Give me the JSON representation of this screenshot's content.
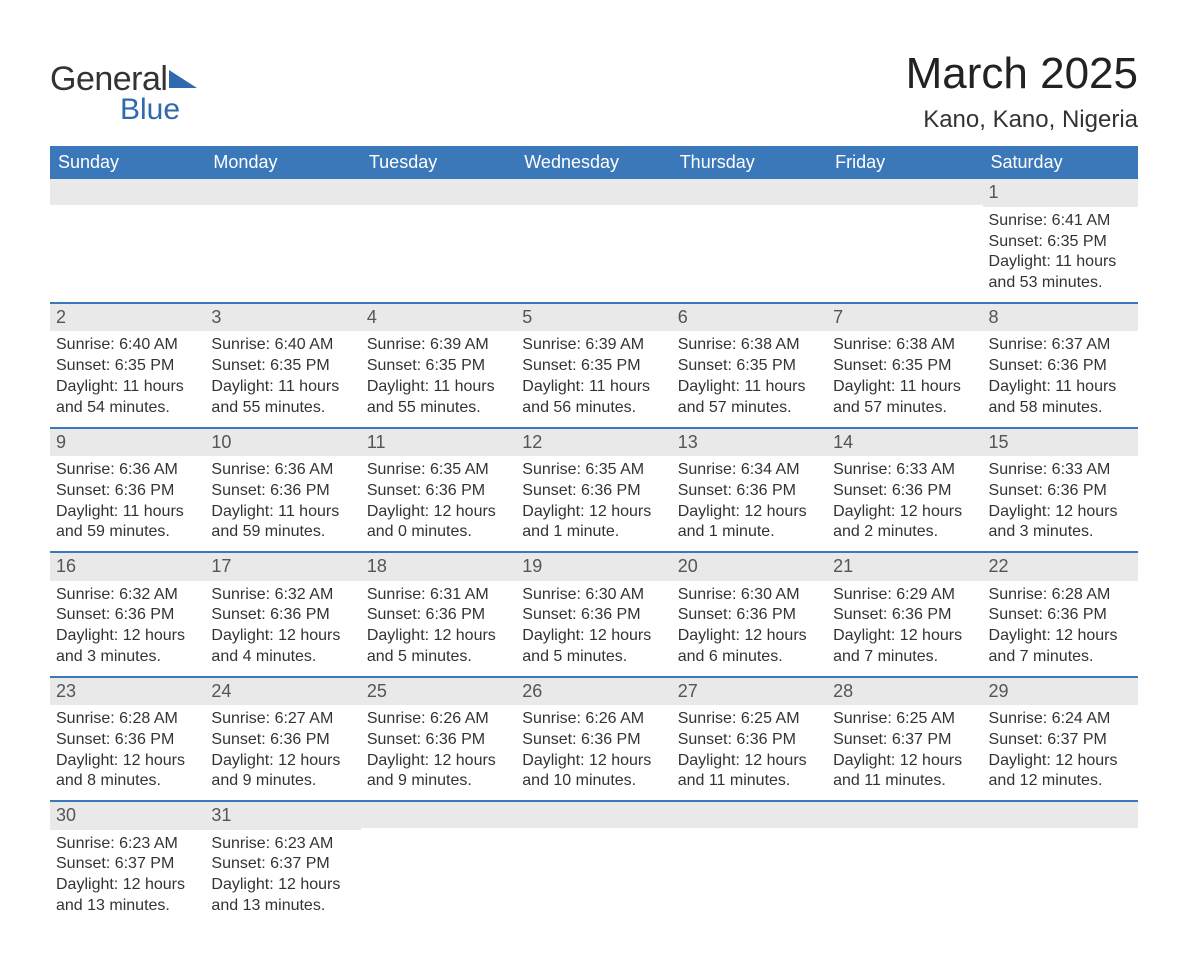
{
  "brand": {
    "word1": "General",
    "word2": "Blue",
    "accent_color": "#2f6aaf"
  },
  "title": "March 2025",
  "location": "Kano, Kano, Nigeria",
  "header_bg": "#3b78b9",
  "header_fg": "#ffffff",
  "daynum_bg": "#e9e9e9",
  "row_border_color": "#3b78b9",
  "days_of_week": [
    "Sunday",
    "Monday",
    "Tuesday",
    "Wednesday",
    "Thursday",
    "Friday",
    "Saturday"
  ],
  "weeks": [
    [
      null,
      null,
      null,
      null,
      null,
      null,
      {
        "n": "1",
        "sr": "Sunrise: 6:41 AM",
        "ss": "Sunset: 6:35 PM",
        "d1": "Daylight: 11 hours",
        "d2": "and 53 minutes."
      }
    ],
    [
      {
        "n": "2",
        "sr": "Sunrise: 6:40 AM",
        "ss": "Sunset: 6:35 PM",
        "d1": "Daylight: 11 hours",
        "d2": "and 54 minutes."
      },
      {
        "n": "3",
        "sr": "Sunrise: 6:40 AM",
        "ss": "Sunset: 6:35 PM",
        "d1": "Daylight: 11 hours",
        "d2": "and 55 minutes."
      },
      {
        "n": "4",
        "sr": "Sunrise: 6:39 AM",
        "ss": "Sunset: 6:35 PM",
        "d1": "Daylight: 11 hours",
        "d2": "and 55 minutes."
      },
      {
        "n": "5",
        "sr": "Sunrise: 6:39 AM",
        "ss": "Sunset: 6:35 PM",
        "d1": "Daylight: 11 hours",
        "d2": "and 56 minutes."
      },
      {
        "n": "6",
        "sr": "Sunrise: 6:38 AM",
        "ss": "Sunset: 6:35 PM",
        "d1": "Daylight: 11 hours",
        "d2": "and 57 minutes."
      },
      {
        "n": "7",
        "sr": "Sunrise: 6:38 AM",
        "ss": "Sunset: 6:35 PM",
        "d1": "Daylight: 11 hours",
        "d2": "and 57 minutes."
      },
      {
        "n": "8",
        "sr": "Sunrise: 6:37 AM",
        "ss": "Sunset: 6:36 PM",
        "d1": "Daylight: 11 hours",
        "d2": "and 58 minutes."
      }
    ],
    [
      {
        "n": "9",
        "sr": "Sunrise: 6:36 AM",
        "ss": "Sunset: 6:36 PM",
        "d1": "Daylight: 11 hours",
        "d2": "and 59 minutes."
      },
      {
        "n": "10",
        "sr": "Sunrise: 6:36 AM",
        "ss": "Sunset: 6:36 PM",
        "d1": "Daylight: 11 hours",
        "d2": "and 59 minutes."
      },
      {
        "n": "11",
        "sr": "Sunrise: 6:35 AM",
        "ss": "Sunset: 6:36 PM",
        "d1": "Daylight: 12 hours",
        "d2": "and 0 minutes."
      },
      {
        "n": "12",
        "sr": "Sunrise: 6:35 AM",
        "ss": "Sunset: 6:36 PM",
        "d1": "Daylight: 12 hours",
        "d2": "and 1 minute."
      },
      {
        "n": "13",
        "sr": "Sunrise: 6:34 AM",
        "ss": "Sunset: 6:36 PM",
        "d1": "Daylight: 12 hours",
        "d2": "and 1 minute."
      },
      {
        "n": "14",
        "sr": "Sunrise: 6:33 AM",
        "ss": "Sunset: 6:36 PM",
        "d1": "Daylight: 12 hours",
        "d2": "and 2 minutes."
      },
      {
        "n": "15",
        "sr": "Sunrise: 6:33 AM",
        "ss": "Sunset: 6:36 PM",
        "d1": "Daylight: 12 hours",
        "d2": "and 3 minutes."
      }
    ],
    [
      {
        "n": "16",
        "sr": "Sunrise: 6:32 AM",
        "ss": "Sunset: 6:36 PM",
        "d1": "Daylight: 12 hours",
        "d2": "and 3 minutes."
      },
      {
        "n": "17",
        "sr": "Sunrise: 6:32 AM",
        "ss": "Sunset: 6:36 PM",
        "d1": "Daylight: 12 hours",
        "d2": "and 4 minutes."
      },
      {
        "n": "18",
        "sr": "Sunrise: 6:31 AM",
        "ss": "Sunset: 6:36 PM",
        "d1": "Daylight: 12 hours",
        "d2": "and 5 minutes."
      },
      {
        "n": "19",
        "sr": "Sunrise: 6:30 AM",
        "ss": "Sunset: 6:36 PM",
        "d1": "Daylight: 12 hours",
        "d2": "and 5 minutes."
      },
      {
        "n": "20",
        "sr": "Sunrise: 6:30 AM",
        "ss": "Sunset: 6:36 PM",
        "d1": "Daylight: 12 hours",
        "d2": "and 6 minutes."
      },
      {
        "n": "21",
        "sr": "Sunrise: 6:29 AM",
        "ss": "Sunset: 6:36 PM",
        "d1": "Daylight: 12 hours",
        "d2": "and 7 minutes."
      },
      {
        "n": "22",
        "sr": "Sunrise: 6:28 AM",
        "ss": "Sunset: 6:36 PM",
        "d1": "Daylight: 12 hours",
        "d2": "and 7 minutes."
      }
    ],
    [
      {
        "n": "23",
        "sr": "Sunrise: 6:28 AM",
        "ss": "Sunset: 6:36 PM",
        "d1": "Daylight: 12 hours",
        "d2": "and 8 minutes."
      },
      {
        "n": "24",
        "sr": "Sunrise: 6:27 AM",
        "ss": "Sunset: 6:36 PM",
        "d1": "Daylight: 12 hours",
        "d2": "and 9 minutes."
      },
      {
        "n": "25",
        "sr": "Sunrise: 6:26 AM",
        "ss": "Sunset: 6:36 PM",
        "d1": "Daylight: 12 hours",
        "d2": "and 9 minutes."
      },
      {
        "n": "26",
        "sr": "Sunrise: 6:26 AM",
        "ss": "Sunset: 6:36 PM",
        "d1": "Daylight: 12 hours",
        "d2": "and 10 minutes."
      },
      {
        "n": "27",
        "sr": "Sunrise: 6:25 AM",
        "ss": "Sunset: 6:36 PM",
        "d1": "Daylight: 12 hours",
        "d2": "and 11 minutes."
      },
      {
        "n": "28",
        "sr": "Sunrise: 6:25 AM",
        "ss": "Sunset: 6:37 PM",
        "d1": "Daylight: 12 hours",
        "d2": "and 11 minutes."
      },
      {
        "n": "29",
        "sr": "Sunrise: 6:24 AM",
        "ss": "Sunset: 6:37 PM",
        "d1": "Daylight: 12 hours",
        "d2": "and 12 minutes."
      }
    ],
    [
      {
        "n": "30",
        "sr": "Sunrise: 6:23 AM",
        "ss": "Sunset: 6:37 PM",
        "d1": "Daylight: 12 hours",
        "d2": "and 13 minutes."
      },
      {
        "n": "31",
        "sr": "Sunrise: 6:23 AM",
        "ss": "Sunset: 6:37 PM",
        "d1": "Daylight: 12 hours",
        "d2": "and 13 minutes."
      },
      null,
      null,
      null,
      null,
      null
    ]
  ]
}
